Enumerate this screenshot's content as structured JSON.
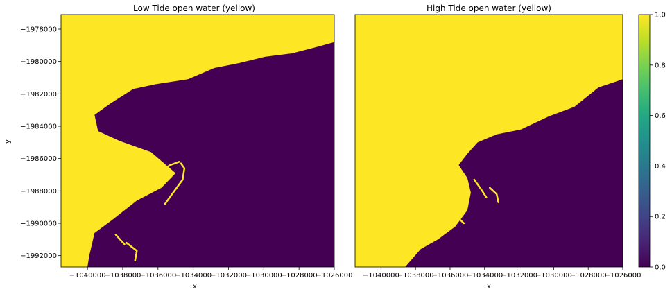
{
  "chart_data": {
    "type": "heatmap",
    "colormap": "viridis",
    "colors": {
      "water": "#fde725",
      "land": "#440154"
    },
    "panels": [
      {
        "title": "Low Tide open water (yellow)",
        "xlabel": "x",
        "ylabel": "y",
        "xlim": [
          -1041500,
          -1026000
        ],
        "ylim": [
          -1992700,
          -1977100
        ],
        "xticks": [
          -1040000,
          -1038000,
          -1036000,
          -1034000,
          -1032000,
          -1030000,
          -1028000,
          -1026000
        ],
        "xtick_labels": [
          "−1040000",
          "−1038000",
          "−1036000",
          "−1034000",
          "−1032000",
          "−1030000",
          "−1028000",
          "−1026000"
        ],
        "yticks": [
          -1978000,
          -1980000,
          -1982000,
          -1984000,
          -1986000,
          -1988000,
          -1990000,
          -1992000
        ],
        "ytick_labels": [
          "−1978000",
          "−1980000",
          "−1982000",
          "−1984000",
          "−1986000",
          "−1988000",
          "−1990000",
          "−1992000"
        ],
        "shoreline": [
          [
            -1041500,
            -1992700
          ],
          [
            -1040000,
            -1992700
          ],
          [
            -1039900,
            -1992000
          ],
          [
            -1039600,
            -1990600
          ],
          [
            -1038600,
            -1989800
          ],
          [
            -1037200,
            -1988600
          ],
          [
            -1035800,
            -1987800
          ],
          [
            -1035000,
            -1986900
          ],
          [
            -1036400,
            -1985600
          ],
          [
            -1038200,
            -1984900
          ],
          [
            -1039400,
            -1984300
          ],
          [
            -1039600,
            -1983300
          ],
          [
            -1038700,
            -1982600
          ],
          [
            -1037400,
            -1981700
          ],
          [
            -1036100,
            -1981400
          ],
          [
            -1034300,
            -1981100
          ],
          [
            -1032800,
            -1980400
          ],
          [
            -1031400,
            -1980100
          ],
          [
            -1029900,
            -1979700
          ],
          [
            -1028400,
            -1979500
          ],
          [
            -1027000,
            -1979100
          ],
          [
            -1026000,
            -1978800
          ],
          [
            -1026000,
            -1977100
          ],
          [
            -1041500,
            -1977100
          ]
        ],
        "channels": [
          [
            [
              -1034700,
              -1986300
            ],
            [
              -1034500,
              -1986600
            ],
            [
              -1034600,
              -1987300
            ],
            [
              -1035200,
              -1988200
            ],
            [
              -1035600,
              -1988800
            ]
          ],
          [
            [
              -1037800,
              -1991200
            ],
            [
              -1037200,
              -1991700
            ],
            [
              -1037300,
              -1992300
            ]
          ],
          [
            [
              -1038400,
              -1990700
            ],
            [
              -1037900,
              -1991300
            ]
          ],
          [
            [
              -1036200,
              -1987000
            ],
            [
              -1035300,
              -1986400
            ],
            [
              -1034800,
              -1986200
            ]
          ]
        ],
        "land_patches": [
          [
            [
              -1038200,
              -1983600
            ],
            [
              -1037600,
              -1983200
            ],
            [
              -1037000,
              -1983500
            ],
            [
              -1037400,
              -1983900
            ]
          ],
          [
            [
              -1039000,
              -1982900
            ],
            [
              -1038100,
              -1982400
            ],
            [
              -1036900,
              -1982600
            ],
            [
              -1037700,
              -1983000
            ]
          ]
        ],
        "water_patches": [
          [
            [
              -1039000,
              -1979600
            ],
            [
              -1038100,
              -1979900
            ],
            [
              -1036600,
              -1980500
            ],
            [
              -1035800,
              -1981000
            ],
            [
              -1037400,
              -1980600
            ],
            [
              -1038600,
              -1980100
            ]
          ]
        ]
      },
      {
        "title": "High Tide open water (yellow)",
        "xlabel": "x",
        "ylabel": "",
        "xlim": [
          -1041500,
          -1026000
        ],
        "ylim": [
          -1992700,
          -1977100
        ],
        "xticks": [
          -1040000,
          -1038000,
          -1036000,
          -1034000,
          -1032000,
          -1030000,
          -1028000,
          -1026000
        ],
        "xtick_labels": [
          "−1040000",
          "−1038000",
          "−1036000",
          "−1034000",
          "−1032000",
          "−1030000",
          "−1028000",
          "−1026000"
        ],
        "yticks": [],
        "ytick_labels": [],
        "shoreline": [
          [
            -1038600,
            -1992700
          ],
          [
            -1037700,
            -1991600
          ],
          [
            -1036700,
            -1991000
          ],
          [
            -1035700,
            -1990200
          ],
          [
            -1035000,
            -1989200
          ],
          [
            -1034800,
            -1988100
          ],
          [
            -1035000,
            -1987200
          ],
          [
            -1035500,
            -1986400
          ],
          [
            -1035000,
            -1985700
          ],
          [
            -1034400,
            -1985000
          ],
          [
            -1033300,
            -1984500
          ],
          [
            -1031900,
            -1984200
          ],
          [
            -1030300,
            -1983400
          ],
          [
            -1028800,
            -1982800
          ],
          [
            -1027400,
            -1981600
          ],
          [
            -1026000,
            -1981100
          ],
          [
            -1026000,
            -1992700
          ]
        ],
        "channels": [
          [
            [
              -1034600,
              -1987300
            ],
            [
              -1034200,
              -1987900
            ],
            [
              -1033900,
              -1988400
            ]
          ],
          [
            [
              -1033700,
              -1987800
            ],
            [
              -1033300,
              -1988200
            ],
            [
              -1033200,
              -1988700
            ]
          ],
          [
            [
              -1035600,
              -1989600
            ],
            [
              -1035200,
              -1990000
            ]
          ]
        ],
        "land_patches": [
          [
            [
              -1041500,
              -1992700
            ],
            [
              -1041500,
              -1992700
            ],
            [
              -1041500,
              -1992700
            ]
          ]
        ],
        "water_patches": [
          [
            [
              -1039300,
              -1990300
            ],
            [
              -1038300,
              -1989200
            ],
            [
              -1036800,
              -1988500
            ],
            [
              -1035600,
              -1988000
            ],
            [
              -1035300,
              -1988400
            ],
            [
              -1036000,
              -1989100
            ],
            [
              -1037300,
              -1989900
            ],
            [
              -1038400,
              -1991000
            ]
          ]
        ]
      }
    ],
    "colorbar": {
      "vmin": 0,
      "vmax": 1,
      "ticks": [
        0.0,
        0.2,
        0.4,
        0.6,
        0.8,
        1.0
      ],
      "tick_labels": [
        "0.0",
        "0.2",
        "0.4",
        "0.6",
        "0.8",
        "1.0"
      ]
    }
  }
}
